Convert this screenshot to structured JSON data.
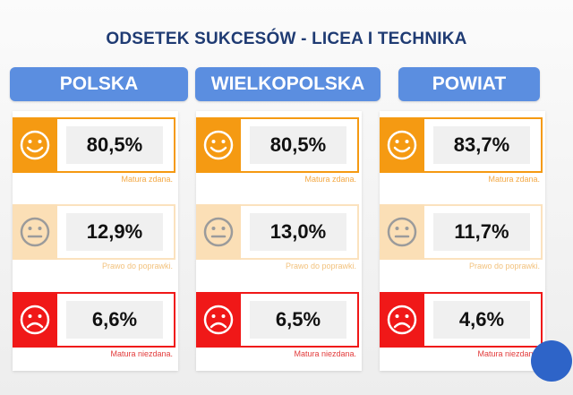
{
  "title": "ODSETEK SUKCESÓW - LICEA I TECHNIKA",
  "columns": [
    {
      "header": "POLSKA",
      "rows": [
        {
          "value": "80,5%",
          "caption": "Matura zdana.",
          "icon": "smiley-happy-icon"
        },
        {
          "value": "12,9%",
          "caption": "Prawo do poprawki.",
          "icon": "smiley-neutral-icon"
        },
        {
          "value": "6,6%",
          "caption": "Matura niezdana.",
          "icon": "smiley-sad-icon"
        }
      ]
    },
    {
      "header": "WIELKOPOLSKA",
      "rows": [
        {
          "value": "80,5%",
          "caption": "Matura zdana.",
          "icon": "smiley-happy-icon"
        },
        {
          "value": "13,0%",
          "caption": "Prawo do poprawki.",
          "icon": "smiley-neutral-icon"
        },
        {
          "value": "6,5%",
          "caption": "Matura niezdana.",
          "icon": "smiley-sad-icon"
        }
      ]
    },
    {
      "header": "POWIAT",
      "rows": [
        {
          "value": "83,7%",
          "caption": "Matura zdana.",
          "icon": "smiley-happy-icon"
        },
        {
          "value": "11,7%",
          "caption": "Prawo do poprawki.",
          "icon": "smiley-neutral-icon"
        },
        {
          "value": "4,6%",
          "caption": "Matura niezdana.",
          "icon": "smiley-sad-icon"
        }
      ]
    }
  ],
  "colors": {
    "title": "#1f3b73",
    "header_bg": "#5b8ee0",
    "pass": "#f59a12",
    "pass_caption": "#f3a844",
    "retake": "#fbdfb6",
    "retake_border": "#fbe2be",
    "retake_caption": "#f2c27e",
    "fail": "#f01818",
    "fail_caption": "#e23a3a",
    "neutral_face": "#9b9b9b"
  }
}
